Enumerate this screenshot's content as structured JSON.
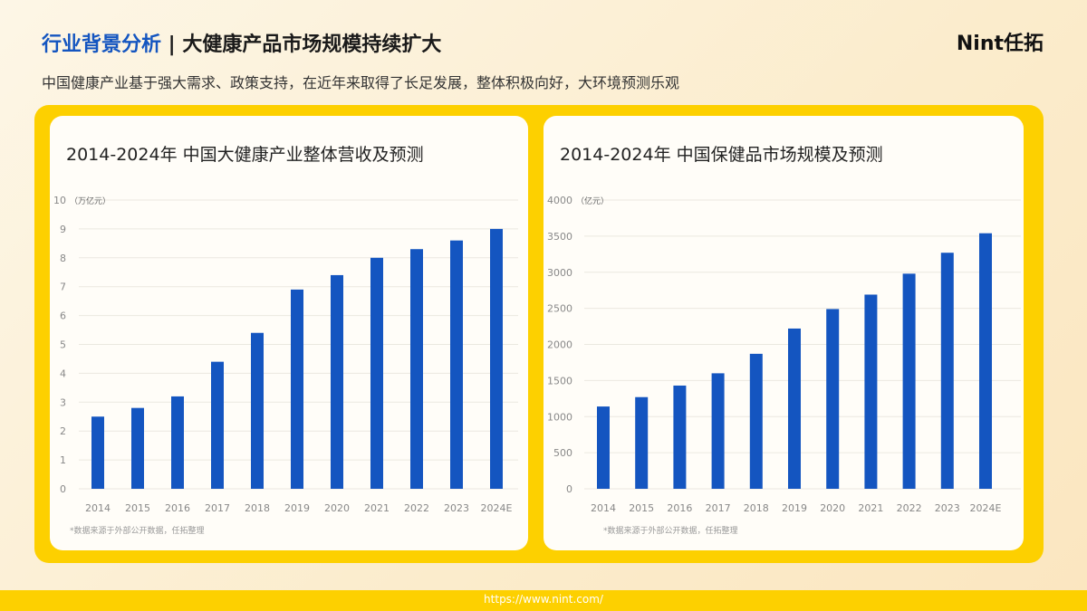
{
  "header": {
    "title_highlight": "行业背景分析",
    "title_sep": " | ",
    "title_main": "大健康产品市场规模持续扩大",
    "subtitle": "中国健康产业基于强大需求、政策支持，在近年来取得了长足发展，整体积极向好，大环境预测乐观",
    "logo": "Nint任拓"
  },
  "footer": {
    "url": "https://www.nint.com/"
  },
  "chart_data": [
    {
      "type": "bar",
      "title": "2014-2024年 中国大健康产业整体营收及预测",
      "unit": "（万亿元）",
      "categories": [
        "2014",
        "2015",
        "2016",
        "2017",
        "2018",
        "2019",
        "2020",
        "2021",
        "2022",
        "2023",
        "2024E"
      ],
      "values": [
        2.5,
        2.8,
        3.2,
        4.4,
        5.4,
        6.9,
        7.4,
        8.0,
        8.3,
        8.6,
        9.0
      ],
      "ylim": [
        0,
        10
      ],
      "yticks": [
        0,
        1,
        2,
        3,
        4,
        5,
        6,
        7,
        8,
        9,
        10
      ],
      "grid": true,
      "color": "#1455c0",
      "note": "*数据来源于外部公开数据，任拓整理"
    },
    {
      "type": "bar",
      "title": "2014-2024年 中国保健品市场规模及预测",
      "unit": "（亿元）",
      "categories": [
        "2014",
        "2015",
        "2016",
        "2017",
        "2018",
        "2019",
        "2020",
        "2021",
        "2022",
        "2023",
        "2024E"
      ],
      "values": [
        1140,
        1270,
        1430,
        1600,
        1870,
        2220,
        2490,
        2690,
        2980,
        3270,
        3540
      ],
      "ylim": [
        0,
        4000
      ],
      "yticks": [
        0,
        500,
        1000,
        1500,
        2000,
        2500,
        3000,
        3500,
        4000
      ],
      "grid": true,
      "color": "#1455c0",
      "note": "*数据来源于外部公开数据，任拓整理"
    }
  ]
}
